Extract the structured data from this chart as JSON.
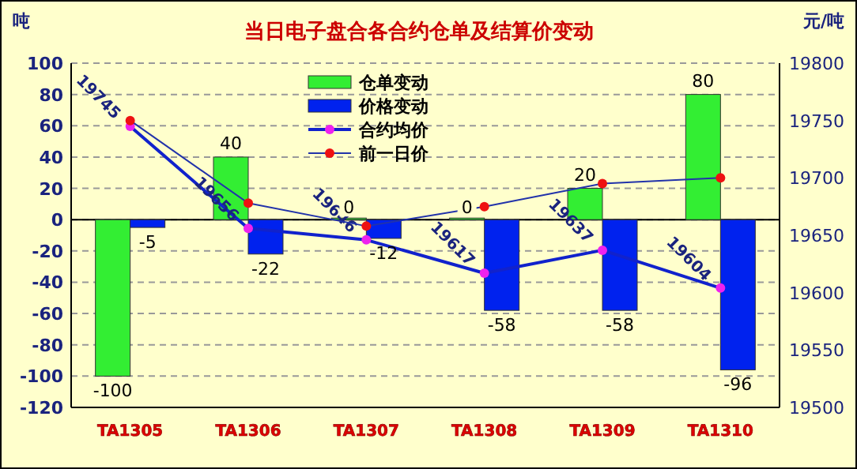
{
  "chart_data": {
    "type": "bar",
    "title": "当日电子盘合各合约仓单及结算价变动",
    "ylabel": "吨",
    "y2label": "元/吨",
    "categories": [
      "TA1305",
      "TA1306",
      "TA1307",
      "TA1308",
      "TA1309",
      "TA1310"
    ],
    "series": [
      {
        "name": "仓单变动",
        "color": "#33ee33",
        "values": [
          -100,
          40,
          0,
          0,
          20,
          80
        ],
        "value_labels": [
          "-100",
          "40",
          "0",
          "0",
          "20",
          "80"
        ]
      },
      {
        "name": "价格变动",
        "color": "#0022ee",
        "values": [
          -5,
          -22,
          -12,
          -58,
          -58,
          -96
        ],
        "value_labels": [
          "-5",
          "-22",
          "-12",
          "-58",
          "-58",
          "-96"
        ]
      },
      {
        "name": "合约均价",
        "type": "line",
        "axis": "y2",
        "color": "#1122cc",
        "marker": "circle",
        "values": [
          19745,
          19656,
          19646,
          19617,
          19637,
          19604
        ],
        "value_labels": [
          "19745",
          "19656",
          "19646",
          "19617",
          "19637",
          "19604"
        ]
      },
      {
        "name": "前一日价",
        "type": "line",
        "axis": "y2",
        "color": "#2233aa",
        "marker": "circle",
        "values": [
          19750,
          19678,
          19658,
          19675,
          19695,
          19700
        ]
      }
    ],
    "ylim": [
      -120,
      100
    ],
    "yticks": [
      -120,
      -100,
      -80,
      -60,
      -40,
      -20,
      0,
      20,
      40,
      60,
      80,
      100
    ],
    "y2lim": [
      19500,
      19800
    ],
    "y2ticks": [
      19500,
      19550,
      19600,
      19650,
      19700,
      19750,
      19800
    ],
    "grid": "y",
    "legend": "top"
  }
}
